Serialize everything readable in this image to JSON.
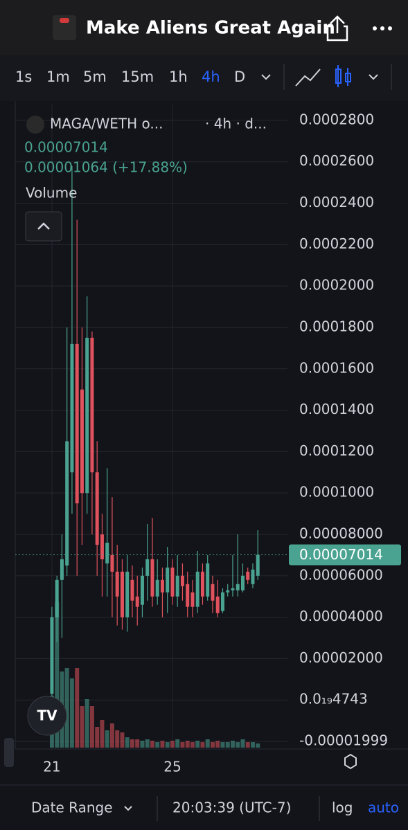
{
  "app": {
    "title": "Make Aliens Great Again",
    "timeframes": [
      "1s",
      "1m",
      "5m",
      "15m",
      "1h",
      "4h",
      "D"
    ],
    "active_timeframe": "4h",
    "symbol": "MAGA/WETH o...",
    "symbol_info": "· 4h · d...",
    "change_label": "0.00001064 (+17.88%)",
    "volume_label": "Volume",
    "footer": {
      "date_range": "Date Range",
      "time": "20:03:39 (UTC-7)",
      "log": "log",
      "auto": "auto"
    }
  },
  "chart_data": {
    "type": "candlestick",
    "x": [
      0,
      4,
      8,
      12,
      16,
      20,
      24,
      28,
      32,
      36,
      40,
      44,
      48,
      52,
      56,
      60,
      64,
      68,
      72,
      76,
      80,
      84,
      88,
      92,
      96,
      100,
      104,
      108,
      112,
      116,
      120,
      124,
      128,
      132,
      136,
      140,
      144,
      148,
      152,
      156,
      160,
      164
    ],
    "open": [
      3e-06,
      4e-05,
      5.8e-05,
      6.5e-05,
      0.00011,
      0.000172,
      0.00015,
      0.0001,
      0.000175,
      0.00011,
      8e-05,
      6.6e-05,
      7e-05,
      6.2e-05,
      6.2e-05,
      4e-05,
      5.8e-05,
      5e-05,
      4.6e-05,
      6e-05,
      6.8e-05,
      5e-05,
      5.8e-05,
      5.2e-05,
      6.4e-05,
      5e-05,
      6e-05,
      5.6e-05,
      5.2e-05,
      4.5e-05,
      6.2e-05,
      5e-05,
      5.6e-05,
      5e-05,
      4.3e-05,
      5.2e-05,
      5.3e-05,
      5.3e-05,
      5.3e-05,
      6.2e-05,
      5.6e-05,
      6e-05
    ],
    "high": [
      4.5e-05,
      6e-05,
      8e-05,
      0.00018,
      0.000258,
      0.000232,
      0.00018,
      0.000195,
      0.000178,
      0.000125,
      9e-05,
      0.000112,
      9.8e-05,
      7.5e-05,
      6.8e-05,
      7e-05,
      6.5e-05,
      6e-05,
      6.4e-05,
      8.5e-05,
      8.8e-05,
      6.8e-05,
      6.4e-05,
      7.4e-05,
      6.8e-05,
      7e-05,
      6.6e-05,
      6.2e-05,
      5.8e-05,
      7.2e-05,
      6.6e-05,
      7e-05,
      6e-05,
      5.8e-05,
      5.4e-05,
      5.6e-05,
      7e-05,
      8e-05,
      6.6e-05,
      6.4e-05,
      6.6e-05,
      8.2e-05
    ],
    "low": [
      2e-06,
      2.8e-05,
      3e-05,
      6e-05,
      9e-05,
      6e-05,
      7.5e-05,
      9e-05,
      8e-05,
      6e-05,
      5e-05,
      5e-05,
      4e-05,
      3.6e-05,
      3.4e-05,
      3.3e-05,
      4e-05,
      3.6e-05,
      4e-05,
      4.8e-05,
      4.5e-05,
      4.6e-05,
      4e-05,
      4.2e-05,
      4.6e-05,
      4.5e-05,
      4.8e-05,
      4e-05,
      4e-05,
      4.2e-05,
      4.6e-05,
      4.8e-05,
      4.2e-05,
      4e-05,
      4.2e-05,
      5e-05,
      5e-05,
      5e-05,
      5.2e-05,
      5.6e-05,
      5.4e-05,
      5.8e-05
    ],
    "close": [
      4e-05,
      5.8e-05,
      6.8e-05,
      0.000125,
      0.000172,
      9.5e-05,
      0.0001,
      0.000175,
      0.00011,
      7.5e-05,
      6.8e-05,
      7.6e-05,
      6.2e-05,
      5e-05,
      4e-05,
      6.2e-05,
      4.8e-05,
      4.5e-05,
      6e-05,
      6.8e-05,
      5e-05,
      5.8e-05,
      5.2e-05,
      6.4e-05,
      5e-05,
      6e-05,
      5.5e-05,
      4.5e-05,
      4.5e-05,
      6.2e-05,
      5e-05,
      6.6e-05,
      4.8e-05,
      4.2e-05,
      5.2e-05,
      5.3e-05,
      5.4e-05,
      5.6e-05,
      6e-05,
      5.8e-05,
      6.3e-05,
      7.014e-05
    ],
    "volume": [
      75,
      210,
      110,
      115,
      100,
      115,
      60,
      70,
      60,
      30,
      40,
      25,
      35,
      25,
      22,
      15,
      12,
      12,
      10,
      12,
      10,
      8,
      10,
      8,
      10,
      12,
      8,
      10,
      8,
      10,
      8,
      12,
      8,
      10,
      8,
      8,
      10,
      8,
      12,
      8,
      8,
      6
    ],
    "up_color": "#4aa391",
    "down_color": "#e0525d",
    "last_price": {
      "value": 7.014e-05,
      "label": "0.00007014"
    },
    "xlim": [
      -29.2,
      187.6
    ],
    "xticks": [
      {
        "value": 0,
        "label": "21"
      },
      {
        "value": 96,
        "label": "25"
      }
    ],
    "ylim": [
      -2.3e-05,
      0.000288
    ],
    "yticks": [
      {
        "value": -1.999e-05,
        "label": "-0.00001999"
      },
      {
        "value": 4.743e-20,
        "label": "0.0₁₉4743"
      },
      {
        "value": 2e-05,
        "label": "0.00002000"
      },
      {
        "value": 4e-05,
        "label": "0.00004000"
      },
      {
        "value": 6e-05,
        "label": "0.00006000"
      },
      {
        "value": 8e-05,
        "label": "0.00008000"
      },
      {
        "value": 0.0001,
        "label": "0.0001000"
      },
      {
        "value": 0.00012,
        "label": "0.0001200"
      },
      {
        "value": 0.00014,
        "label": "0.0001400"
      },
      {
        "value": 0.00016,
        "label": "0.0001600"
      },
      {
        "value": 0.00018,
        "label": "0.0001800"
      },
      {
        "value": 0.0002,
        "label": "0.0002000"
      },
      {
        "value": 0.00022,
        "label": "0.0002200"
      },
      {
        "value": 0.00024,
        "label": "0.0002400"
      },
      {
        "value": 0.00026,
        "label": "0.0002600"
      },
      {
        "value": 0.00028,
        "label": "0.0002800"
      }
    ],
    "grid": true
  }
}
